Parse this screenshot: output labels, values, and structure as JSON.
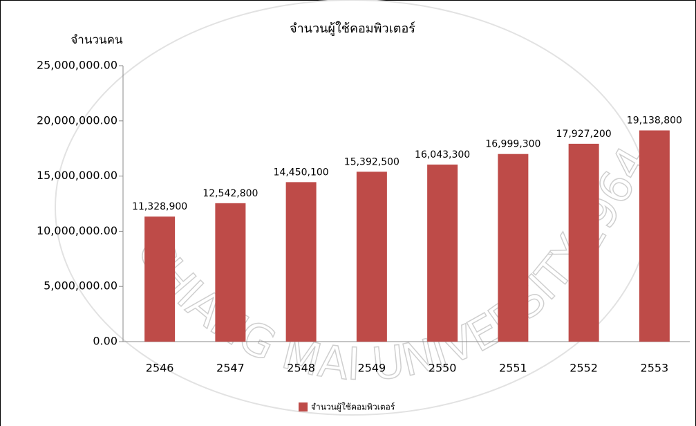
{
  "chart_data": {
    "type": "bar",
    "title": "จำนวนผู้ใช้คอมพิวเตอร์",
    "y_label": "จำนวนคน",
    "categories": [
      "2546",
      "2547",
      "2548",
      "2549",
      "2550",
      "2551",
      "2552",
      "2553"
    ],
    "series": [
      {
        "name": "จำนวนผู้ใช้คอมพิวเตอร์",
        "color": "#be4b48",
        "values": [
          11328900,
          12542800,
          14450100,
          15392500,
          16043300,
          16999300,
          17927200,
          19138800
        ],
        "value_labels": [
          "11,328,900",
          "12,542,800",
          "14,450,100",
          "15,392,500",
          "16,043,300",
          "16,999,300",
          "17,927,200",
          "19,138,800"
        ]
      }
    ],
    "ylim": [
      0,
      25000000
    ],
    "yticks": [
      {
        "value": 0,
        "label": "0.00"
      },
      {
        "value": 5000000,
        "label": "5,000,000.00"
      },
      {
        "value": 10000000,
        "label": "10,000,000.00"
      },
      {
        "value": 15000000,
        "label": "15,000,000.00"
      },
      {
        "value": 20000000,
        "label": "20,000,000.00"
      },
      {
        "value": 25000000,
        "label": "25,000,000.00"
      }
    ],
    "legend": "bottom",
    "watermark": {
      "text": "CHIANG MAI UNIVERSITY",
      "year": "1964"
    }
  }
}
